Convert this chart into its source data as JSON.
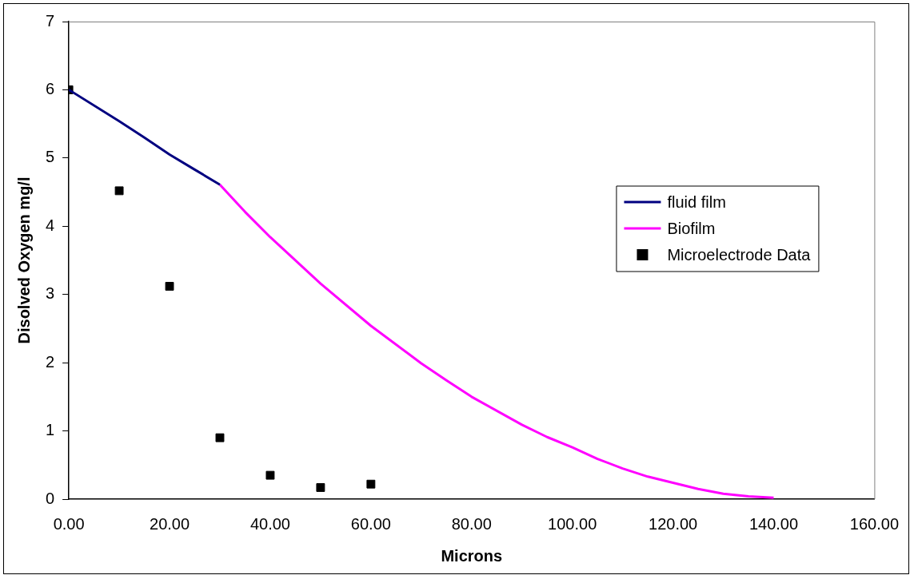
{
  "chart_data": {
    "type": "line",
    "xlabel": "Microns",
    "ylabel": "Disolved Oxygen mg/l",
    "xlim": [
      0,
      160
    ],
    "xticks": [
      {
        "value": 0,
        "label": "0.00"
      },
      {
        "value": 20,
        "label": "20.00"
      },
      {
        "value": 40,
        "label": "40.00"
      },
      {
        "value": 60,
        "label": "60.00"
      },
      {
        "value": 80,
        "label": "80.00"
      },
      {
        "value": 100,
        "label": "100.00"
      },
      {
        "value": 120,
        "label": "120.00"
      },
      {
        "value": 140,
        "label": "140.00"
      },
      {
        "value": 160,
        "label": "160.00"
      }
    ],
    "ylim": [
      0,
      7
    ],
    "yticks": [
      0,
      1,
      2,
      3,
      4,
      5,
      6,
      7
    ],
    "grid": false,
    "legend": "right",
    "series": [
      {
        "name": "fluid film",
        "color": "#000080",
        "marker": "none",
        "x": [
          0,
          10,
          15,
          20,
          25,
          30
        ],
        "values": [
          6.0,
          5.54,
          5.3,
          5.05,
          4.83,
          4.61
        ]
      },
      {
        "name": "Biofilm",
        "color": "#ff00ff",
        "marker": "none",
        "x": [
          30,
          35,
          40,
          50,
          60,
          70,
          75,
          80,
          90,
          95,
          100,
          105,
          110,
          115,
          120,
          125,
          130,
          135,
          140
        ],
        "values": [
          4.61,
          4.21,
          3.84,
          3.16,
          2.54,
          1.99,
          1.74,
          1.5,
          1.09,
          0.91,
          0.76,
          0.59,
          0.45,
          0.33,
          0.24,
          0.15,
          0.08,
          0.04,
          0.02
        ]
      },
      {
        "name": "Microelectrode Data",
        "type": "scatter",
        "color": "#000000",
        "marker": "square",
        "x": [
          0,
          10,
          20,
          30,
          40,
          50,
          60
        ],
        "values": [
          6.0,
          4.52,
          3.12,
          0.9,
          0.35,
          0.17,
          0.22
        ]
      }
    ]
  }
}
